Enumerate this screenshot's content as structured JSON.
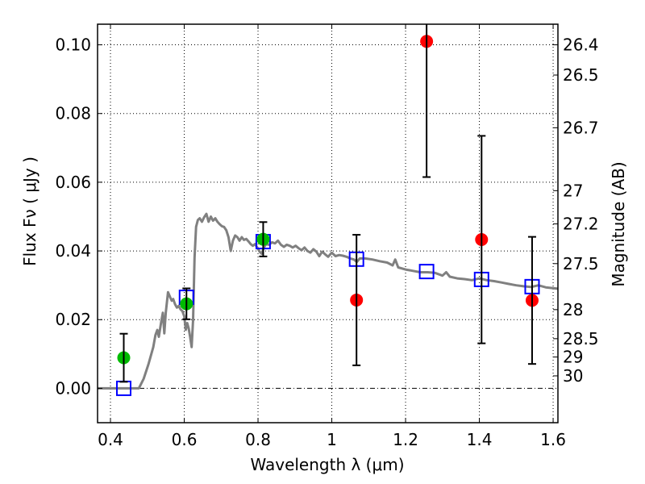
{
  "chart_data": {
    "type": "scatter",
    "title": "",
    "xlabel": "Wavelength  λ (μm)",
    "ylabel": "Flux  Fν  ( μJy )",
    "ylabel_right": "Magnitude (AB)",
    "xlim": [
      0.365,
      1.613
    ],
    "ylim": [
      -0.01,
      0.106
    ],
    "grid": true,
    "legend": "none",
    "x_ticks": [
      {
        "value": 0.4,
        "label": "0.4"
      },
      {
        "value": 0.6,
        "label": "0.6"
      },
      {
        "value": 0.8,
        "label": "0.8"
      },
      {
        "value": 1.0,
        "label": "1"
      },
      {
        "value": 1.2,
        "label": "1.2"
      },
      {
        "value": 1.4,
        "label": "1.4"
      },
      {
        "value": 1.6,
        "label": "1.6"
      }
    ],
    "y_ticks": [
      {
        "value": 0.0,
        "label": "0.00"
      },
      {
        "value": 0.02,
        "label": "0.02"
      },
      {
        "value": 0.04,
        "label": "0.04"
      },
      {
        "value": 0.06,
        "label": "0.06"
      },
      {
        "value": 0.08,
        "label": "0.08"
      },
      {
        "value": 0.1,
        "label": "0.10"
      }
    ],
    "right_ticks": [
      {
        "mag": 26.4,
        "label": "26.4"
      },
      {
        "mag": 26.5,
        "label": "26.5"
      },
      {
        "mag": 26.7,
        "label": "26.7"
      },
      {
        "mag": 27.0,
        "label": "27"
      },
      {
        "mag": 27.2,
        "label": "27.2"
      },
      {
        "mag": 27.5,
        "label": "27.5"
      },
      {
        "mag": 28.0,
        "label": "28"
      },
      {
        "mag": 28.5,
        "label": "28.5"
      },
      {
        "mag": 29.0,
        "label": "29"
      },
      {
        "mag": 30.0,
        "label": "30"
      }
    ],
    "mag_zero_point": 23.9,
    "colors": {
      "model": "#808080",
      "detected": "#00bb00",
      "upper": "#ff0000",
      "model_phot": "#0000ff",
      "errorbar": "#000000"
    },
    "series": [
      {
        "name": "model spectrum",
        "kind": "line",
        "x": [
          0.365,
          0.4,
          0.44,
          0.477,
          0.49,
          0.503,
          0.516,
          0.522,
          0.527,
          0.531,
          0.537,
          0.542,
          0.546,
          0.55,
          0.556,
          0.562,
          0.566,
          0.57,
          0.575,
          0.58,
          0.585,
          0.59,
          0.595,
          0.6,
          0.604,
          0.608,
          0.612,
          0.616,
          0.62,
          0.624,
          0.628,
          0.632,
          0.637,
          0.642,
          0.648,
          0.654,
          0.66,
          0.666,
          0.672,
          0.678,
          0.684,
          0.69,
          0.696,
          0.702,
          0.708,
          0.714,
          0.72,
          0.726,
          0.732,
          0.738,
          0.744,
          0.75,
          0.756,
          0.762,
          0.768,
          0.774,
          0.78,
          0.786,
          0.792,
          0.798,
          0.804,
          0.81,
          0.816,
          0.822,
          0.83,
          0.838,
          0.846,
          0.854,
          0.862,
          0.87,
          0.878,
          0.886,
          0.894,
          0.902,
          0.91,
          0.918,
          0.926,
          0.934,
          0.942,
          0.95,
          0.958,
          0.966,
          0.974,
          0.982,
          0.99,
          1.0,
          1.01,
          1.02,
          1.03,
          1.04,
          1.05,
          1.06,
          1.068,
          1.076,
          1.09,
          1.11,
          1.13,
          1.15,
          1.165,
          1.172,
          1.18,
          1.2,
          1.22,
          1.24,
          1.26,
          1.28,
          1.3,
          1.31,
          1.32,
          1.34,
          1.36,
          1.38,
          1.4,
          1.42,
          1.44,
          1.46,
          1.48,
          1.5,
          1.52,
          1.54,
          1.56,
          1.58,
          1.613
        ],
        "y": [
          0.0,
          0.0,
          0.0,
          0.0,
          0.0028,
          0.007,
          0.012,
          0.0155,
          0.017,
          0.015,
          0.019,
          0.022,
          0.016,
          0.022,
          0.028,
          0.0265,
          0.0255,
          0.026,
          0.0245,
          0.0235,
          0.024,
          0.023,
          0.0225,
          0.021,
          0.017,
          0.019,
          0.0175,
          0.015,
          0.012,
          0.02,
          0.038,
          0.047,
          0.049,
          0.0495,
          0.0485,
          0.0498,
          0.0508,
          0.0485,
          0.05,
          0.0488,
          0.0495,
          0.0485,
          0.0478,
          0.0472,
          0.047,
          0.046,
          0.044,
          0.04,
          0.043,
          0.0445,
          0.044,
          0.043,
          0.044,
          0.0432,
          0.0435,
          0.0428,
          0.042,
          0.0415,
          0.042,
          0.041,
          0.0398,
          0.0392,
          0.041,
          0.042,
          0.0418,
          0.0425,
          0.0422,
          0.043,
          0.0418,
          0.0412,
          0.0418,
          0.0415,
          0.041,
          0.0415,
          0.0408,
          0.0402,
          0.041,
          0.04,
          0.0395,
          0.0405,
          0.0398,
          0.0385,
          0.0398,
          0.039,
          0.0383,
          0.0395,
          0.0385,
          0.0388,
          0.0386,
          0.0383,
          0.0378,
          0.0375,
          0.0368,
          0.0378,
          0.0378,
          0.0375,
          0.037,
          0.0366,
          0.0358,
          0.0375,
          0.0352,
          0.0346,
          0.0342,
          0.0338,
          0.0338,
          0.0336,
          0.0328,
          0.0338,
          0.0325,
          0.032,
          0.0318,
          0.0315,
          0.032,
          0.0315,
          0.0312,
          0.0308,
          0.0304,
          0.03,
          0.0297,
          0.0295,
          0.03,
          0.0294,
          0.029
        ]
      },
      {
        "name": "model photometry",
        "kind": "square",
        "x": [
          0.436,
          0.606,
          0.814,
          1.067,
          1.257,
          1.406,
          1.543
        ],
        "y": [
          0.0,
          0.0265,
          0.0427,
          0.0376,
          0.034,
          0.0317,
          0.0296
        ]
      },
      {
        "name": "detections",
        "kind": "circle",
        "x": [
          0.436,
          0.606,
          0.814
        ],
        "y": [
          0.0089,
          0.0246,
          0.0434
        ],
        "yerr": [
          0.007,
          0.0045,
          0.005
        ]
      },
      {
        "name": "non-detections",
        "kind": "circle",
        "x": [
          1.067,
          1.257,
          1.406,
          1.543
        ],
        "y": [
          0.0257,
          0.101,
          0.0433,
          0.0256
        ],
        "yerr": [
          0.019,
          0.0395,
          0.0302,
          0.0185
        ]
      }
    ]
  }
}
